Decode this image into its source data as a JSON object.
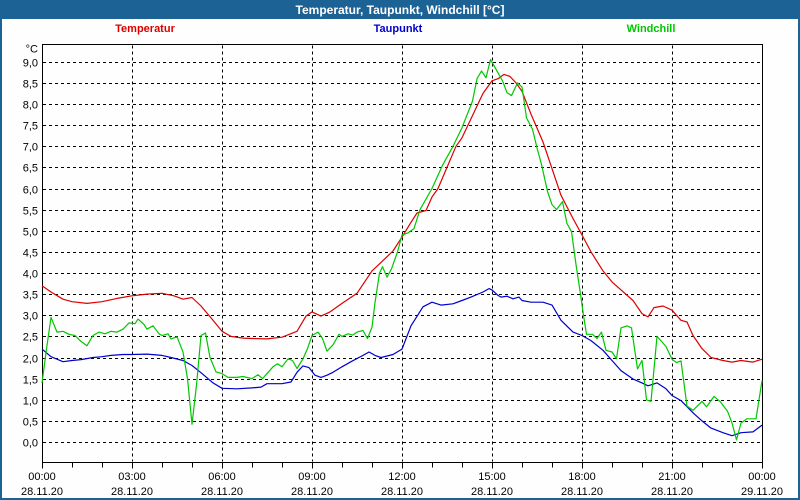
{
  "window": {
    "title": "Temperatur, Taupunkt, Windchill [°C]",
    "titlebar_color": "#1d6295",
    "frame_color": "#1d6295"
  },
  "legend": {
    "items": [
      {
        "label": "Temperatur",
        "color": "#dd0000"
      },
      {
        "label": "Taupunkt",
        "color": "#0000cd"
      },
      {
        "label": "Windchill",
        "color": "#00c800"
      }
    ]
  },
  "chart_data": {
    "type": "line",
    "title": "Temperatur, Taupunkt, Windchill [°C]",
    "unit_label": "°C",
    "grid": {
      "dashed": true,
      "color": "#000000"
    },
    "legend_position": "top",
    "y_axis": {
      "min": 0.0,
      "max": 9.0,
      "step": 0.5,
      "render_min": -0.5,
      "render_max": 9.4,
      "tick_labels": [
        "9,0",
        "8,5",
        "8,0",
        "7,5",
        "7,0",
        "6,5",
        "6,0",
        "5,5",
        "5,0",
        "4,5",
        "4,0",
        "3,5",
        "3,0",
        "2,5",
        "2,0",
        "1,5",
        "1,0",
        "0,5",
        "0,0"
      ]
    },
    "x_axis": {
      "hours_span": 24,
      "minor_tick_hours": 1,
      "major_tick_hours": 3,
      "ticks": [
        {
          "time": "00:00",
          "date": "28.11.20"
        },
        {
          "time": "03:00",
          "date": "28.11.20"
        },
        {
          "time": "06:00",
          "date": "28.11.20"
        },
        {
          "time": "09:00",
          "date": "28.11.20"
        },
        {
          "time": "12:00",
          "date": "28.11.20"
        },
        {
          "time": "15:00",
          "date": "28.11.20"
        },
        {
          "time": "18:00",
          "date": "28.11.20"
        },
        {
          "time": "21:00",
          "date": "28.11.20"
        },
        {
          "time": "00:00",
          "date": "29.11.20"
        }
      ]
    },
    "series": [
      {
        "name": "Temperatur",
        "color": "#dd0000",
        "points": [
          [
            0,
            3.7
          ],
          [
            0.3,
            3.55
          ],
          [
            0.7,
            3.38
          ],
          [
            1,
            3.32
          ],
          [
            1.5,
            3.28
          ],
          [
            2,
            3.32
          ],
          [
            2.5,
            3.4
          ],
          [
            3,
            3.46
          ],
          [
            3.5,
            3.5
          ],
          [
            4,
            3.52
          ],
          [
            4.4,
            3.46
          ],
          [
            4.7,
            3.38
          ],
          [
            5,
            3.42
          ],
          [
            5.3,
            3.22
          ],
          [
            5.7,
            2.88
          ],
          [
            6,
            2.62
          ],
          [
            6.3,
            2.5
          ],
          [
            6.7,
            2.46
          ],
          [
            7,
            2.45
          ],
          [
            7.5,
            2.44
          ],
          [
            8,
            2.48
          ],
          [
            8.5,
            2.62
          ],
          [
            8.8,
            2.98
          ],
          [
            9,
            3.08
          ],
          [
            9.3,
            2.98
          ],
          [
            9.6,
            3.08
          ],
          [
            10,
            3.28
          ],
          [
            10.5,
            3.52
          ],
          [
            11,
            4.05
          ],
          [
            11.3,
            4.25
          ],
          [
            11.7,
            4.52
          ],
          [
            12,
            4.85
          ],
          [
            12.3,
            5.2
          ],
          [
            12.5,
            5.42
          ],
          [
            12.8,
            5.48
          ],
          [
            13,
            5.8
          ],
          [
            13.2,
            6.0
          ],
          [
            13.5,
            6.5
          ],
          [
            13.8,
            7.0
          ],
          [
            14,
            7.2
          ],
          [
            14.3,
            7.65
          ],
          [
            14.7,
            8.25
          ],
          [
            14.9,
            8.45
          ],
          [
            15,
            8.55
          ],
          [
            15.2,
            8.6
          ],
          [
            15.4,
            8.7
          ],
          [
            15.6,
            8.65
          ],
          [
            15.8,
            8.5
          ],
          [
            16,
            8.3
          ],
          [
            16.3,
            7.76
          ],
          [
            16.7,
            7.1
          ],
          [
            17,
            6.47
          ],
          [
            17.3,
            5.84
          ],
          [
            17.7,
            5.29
          ],
          [
            18,
            4.9
          ],
          [
            18.3,
            4.5
          ],
          [
            18.7,
            4.05
          ],
          [
            19,
            3.79
          ],
          [
            19.3,
            3.6
          ],
          [
            19.7,
            3.35
          ],
          [
            20,
            3.04
          ],
          [
            20.2,
            2.96
          ],
          [
            20.4,
            3.18
          ],
          [
            20.7,
            3.22
          ],
          [
            21,
            3.12
          ],
          [
            21.3,
            2.88
          ],
          [
            21.5,
            2.84
          ],
          [
            21.7,
            2.52
          ],
          [
            22,
            2.21
          ],
          [
            22.3,
            2.0
          ],
          [
            22.7,
            1.93
          ],
          [
            23,
            1.89
          ],
          [
            23.3,
            1.93
          ],
          [
            23.7,
            1.89
          ],
          [
            24,
            1.96
          ]
        ]
      },
      {
        "name": "Taupunkt",
        "color": "#0000cd",
        "points": [
          [
            0,
            2.2
          ],
          [
            0.3,
            2.02
          ],
          [
            0.7,
            1.9
          ],
          [
            1,
            1.93
          ],
          [
            1.3,
            1.95
          ],
          [
            1.7,
            2.0
          ],
          [
            2,
            2.02
          ],
          [
            2.3,
            2.05
          ],
          [
            2.7,
            2.07
          ],
          [
            3,
            2.07
          ],
          [
            3.5,
            2.08
          ],
          [
            4,
            2.05
          ],
          [
            4.3,
            2.0
          ],
          [
            4.7,
            1.93
          ],
          [
            5,
            1.81
          ],
          [
            5.3,
            1.64
          ],
          [
            5.7,
            1.4
          ],
          [
            6,
            1.27
          ],
          [
            6.5,
            1.26
          ],
          [
            7,
            1.28
          ],
          [
            7.3,
            1.3
          ],
          [
            7.5,
            1.38
          ],
          [
            8,
            1.38
          ],
          [
            8.3,
            1.42
          ],
          [
            8.5,
            1.65
          ],
          [
            8.7,
            1.8
          ],
          [
            8.9,
            1.76
          ],
          [
            9.1,
            1.58
          ],
          [
            9.3,
            1.53
          ],
          [
            9.5,
            1.58
          ],
          [
            9.7,
            1.65
          ],
          [
            10,
            1.78
          ],
          [
            10.3,
            1.9
          ],
          [
            10.7,
            2.05
          ],
          [
            10.9,
            2.13
          ],
          [
            11.1,
            2.05
          ],
          [
            11.3,
            2.0
          ],
          [
            11.7,
            2.07
          ],
          [
            12,
            2.2
          ],
          [
            12.3,
            2.75
          ],
          [
            12.7,
            3.2
          ],
          [
            13,
            3.31
          ],
          [
            13.3,
            3.24
          ],
          [
            13.7,
            3.27
          ],
          [
            14,
            3.35
          ],
          [
            14.3,
            3.43
          ],
          [
            14.7,
            3.55
          ],
          [
            14.9,
            3.63
          ],
          [
            15,
            3.6
          ],
          [
            15.2,
            3.47
          ],
          [
            15.3,
            3.43
          ],
          [
            15.5,
            3.45
          ],
          [
            15.7,
            3.39
          ],
          [
            15.9,
            3.43
          ],
          [
            16,
            3.35
          ],
          [
            16.3,
            3.31
          ],
          [
            16.7,
            3.31
          ],
          [
            17,
            3.24
          ],
          [
            17.3,
            2.88
          ],
          [
            17.7,
            2.6
          ],
          [
            18,
            2.52
          ],
          [
            18.3,
            2.4
          ],
          [
            18.7,
            2.17
          ],
          [
            19,
            1.93
          ],
          [
            19.3,
            1.69
          ],
          [
            19.7,
            1.49
          ],
          [
            20,
            1.4
          ],
          [
            20.2,
            1.33
          ],
          [
            20.5,
            1.4
          ],
          [
            20.8,
            1.26
          ],
          [
            21,
            1.1
          ],
          [
            21.3,
            0.98
          ],
          [
            21.7,
            0.69
          ],
          [
            22,
            0.5
          ],
          [
            22.3,
            0.33
          ],
          [
            22.7,
            0.22
          ],
          [
            23,
            0.15
          ],
          [
            23.3,
            0.22
          ],
          [
            23.7,
            0.24
          ],
          [
            24,
            0.4
          ]
        ]
      },
      {
        "name": "Windchill",
        "color": "#00c800",
        "points": [
          [
            0,
            1.4
          ],
          [
            0.15,
            2.2
          ],
          [
            0.3,
            2.95
          ],
          [
            0.5,
            2.6
          ],
          [
            0.7,
            2.62
          ],
          [
            0.9,
            2.55
          ],
          [
            1.1,
            2.52
          ],
          [
            1.3,
            2.38
          ],
          [
            1.5,
            2.28
          ],
          [
            1.7,
            2.52
          ],
          [
            1.9,
            2.6
          ],
          [
            2.1,
            2.56
          ],
          [
            2.3,
            2.62
          ],
          [
            2.5,
            2.6
          ],
          [
            2.7,
            2.67
          ],
          [
            2.9,
            2.82
          ],
          [
            3.1,
            2.8
          ],
          [
            3.2,
            2.91
          ],
          [
            3.4,
            2.78
          ],
          [
            3.5,
            2.67
          ],
          [
            3.7,
            2.75
          ],
          [
            3.9,
            2.56
          ],
          [
            4,
            2.52
          ],
          [
            4.2,
            2.56
          ],
          [
            4.3,
            2.44
          ],
          [
            4.5,
            2.49
          ],
          [
            4.7,
            2.13
          ],
          [
            4.85,
            1.5
          ],
          [
            5,
            0.42
          ],
          [
            5.15,
            1.35
          ],
          [
            5.3,
            2.52
          ],
          [
            5.45,
            2.58
          ],
          [
            5.6,
            2.0
          ],
          [
            5.8,
            1.66
          ],
          [
            6,
            1.62
          ],
          [
            6.2,
            1.53
          ],
          [
            6.5,
            1.53
          ],
          [
            6.7,
            1.55
          ],
          [
            7,
            1.5
          ],
          [
            7.2,
            1.59
          ],
          [
            7.35,
            1.5
          ],
          [
            7.7,
            1.78
          ],
          [
            7.85,
            1.85
          ],
          [
            8,
            1.78
          ],
          [
            8.2,
            1.97
          ],
          [
            8.35,
            1.93
          ],
          [
            8.5,
            1.74
          ],
          [
            8.7,
            1.97
          ],
          [
            8.85,
            2.21
          ],
          [
            9,
            2.52
          ],
          [
            9.2,
            2.6
          ],
          [
            9.35,
            2.45
          ],
          [
            9.5,
            2.15
          ],
          [
            9.7,
            2.3
          ],
          [
            9.9,
            2.55
          ],
          [
            10,
            2.5
          ],
          [
            10.2,
            2.56
          ],
          [
            10.35,
            2.53
          ],
          [
            10.5,
            2.6
          ],
          [
            10.7,
            2.64
          ],
          [
            10.85,
            2.45
          ],
          [
            11,
            2.72
          ],
          [
            11.1,
            3.3
          ],
          [
            11.25,
            4.0
          ],
          [
            11.35,
            4.15
          ],
          [
            11.5,
            3.9
          ],
          [
            11.65,
            4.1
          ],
          [
            11.85,
            4.5
          ],
          [
            12,
            4.9
          ],
          [
            12.2,
            4.95
          ],
          [
            12.4,
            5.05
          ],
          [
            12.6,
            5.5
          ],
          [
            12.8,
            5.75
          ],
          [
            13,
            6.0
          ],
          [
            13.35,
            6.55
          ],
          [
            13.7,
            7.0
          ],
          [
            14,
            7.44
          ],
          [
            14.35,
            8.07
          ],
          [
            14.5,
            8.6
          ],
          [
            14.65,
            8.78
          ],
          [
            14.8,
            8.62
          ],
          [
            14.95,
            9.05
          ],
          [
            15.15,
            8.8
          ],
          [
            15.35,
            8.55
          ],
          [
            15.5,
            8.27
          ],
          [
            15.65,
            8.2
          ],
          [
            15.85,
            8.5
          ],
          [
            16,
            8.4
          ],
          [
            16.15,
            7.67
          ],
          [
            16.35,
            7.4
          ],
          [
            16.5,
            6.96
          ],
          [
            16.65,
            6.57
          ],
          [
            16.85,
            5.93
          ],
          [
            17,
            5.62
          ],
          [
            17.15,
            5.5
          ],
          [
            17.35,
            5.69
          ],
          [
            17.5,
            5.17
          ],
          [
            17.65,
            4.98
          ],
          [
            17.8,
            4.2
          ],
          [
            17.95,
            3.5
          ],
          [
            18.05,
            3.0
          ],
          [
            18.15,
            2.55
          ],
          [
            18.35,
            2.55
          ],
          [
            18.5,
            2.45
          ],
          [
            18.65,
            2.6
          ],
          [
            18.8,
            2.17
          ],
          [
            19,
            2.13
          ],
          [
            19.15,
            1.97
          ],
          [
            19.3,
            2.7
          ],
          [
            19.5,
            2.75
          ],
          [
            19.65,
            2.7
          ],
          [
            19.85,
            1.73
          ],
          [
            20,
            1.93
          ],
          [
            20.15,
            1.0
          ],
          [
            20.3,
            0.96
          ],
          [
            20.5,
            2.5
          ],
          [
            20.65,
            2.38
          ],
          [
            20.8,
            2.26
          ],
          [
            21,
            1.96
          ],
          [
            21.15,
            1.88
          ],
          [
            21.3,
            1.92
          ],
          [
            21.5,
            0.85
          ],
          [
            21.7,
            0.75
          ],
          [
            22,
            0.96
          ],
          [
            22.15,
            0.83
          ],
          [
            22.4,
            1.08
          ],
          [
            22.6,
            0.96
          ],
          [
            22.85,
            0.73
          ],
          [
            23,
            0.45
          ],
          [
            23.15,
            0.05
          ],
          [
            23.3,
            0.45
          ],
          [
            23.5,
            0.55
          ],
          [
            23.8,
            0.55
          ],
          [
            24,
            1.45
          ]
        ]
      }
    ]
  }
}
